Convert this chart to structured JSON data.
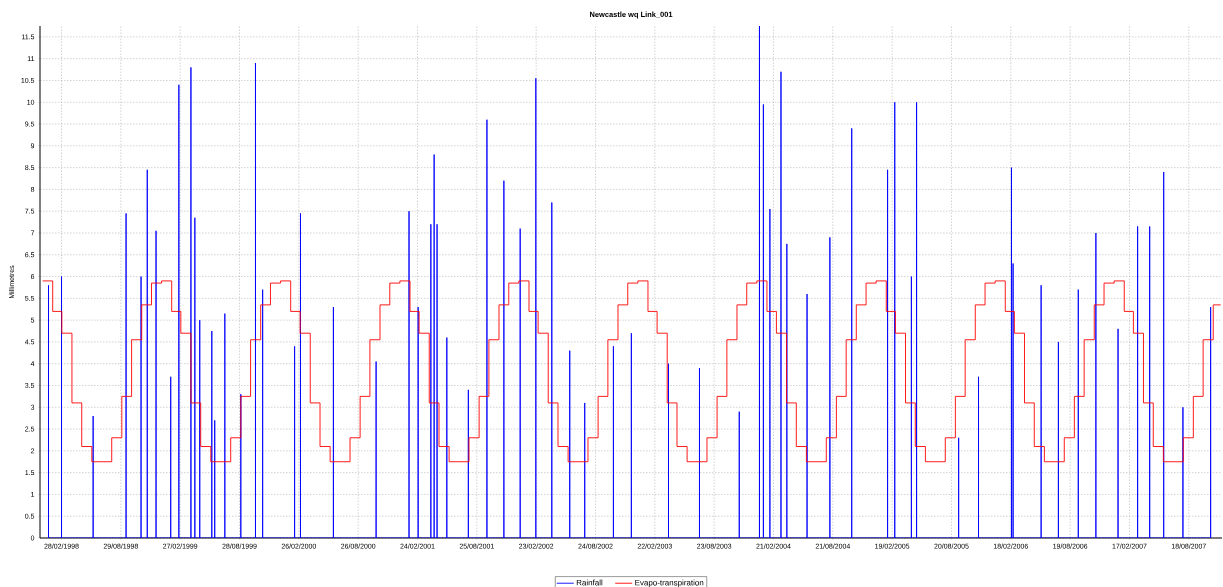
{
  "chart_data": {
    "type": "line",
    "title": "Newcastle wq Link_001",
    "ylabel": "Millimetres",
    "xlim": [
      "1997-12-24",
      "2007-11-28"
    ],
    "ylim": [
      0,
      11.75
    ],
    "xticks": [
      {
        "value": "1998-02-28",
        "label": "28/02/1998"
      },
      {
        "value": "1998-08-29",
        "label": "29/08/1998"
      },
      {
        "value": "1999-02-27",
        "label": "27/02/1999"
      },
      {
        "value": "1999-08-28",
        "label": "28/08/1999"
      },
      {
        "value": "2000-02-26",
        "label": "26/02/2000"
      },
      {
        "value": "2000-08-26",
        "label": "26/08/2000"
      },
      {
        "value": "2001-02-24",
        "label": "24/02/2001"
      },
      {
        "value": "2001-08-25",
        "label": "25/08/2001"
      },
      {
        "value": "2002-02-23",
        "label": "23/02/2002"
      },
      {
        "value": "2002-08-24",
        "label": "24/08/2002"
      },
      {
        "value": "2003-02-22",
        "label": "22/02/2003"
      },
      {
        "value": "2003-08-23",
        "label": "23/08/2003"
      },
      {
        "value": "2004-02-21",
        "label": "21/02/2004"
      },
      {
        "value": "2004-08-21",
        "label": "21/08/2004"
      },
      {
        "value": "2005-02-19",
        "label": "19/02/2005"
      },
      {
        "value": "2005-08-20",
        "label": "20/08/2005"
      },
      {
        "value": "2006-02-18",
        "label": "18/02/2006"
      },
      {
        "value": "2006-08-19",
        "label": "19/08/2006"
      },
      {
        "value": "2007-02-17",
        "label": "17/02/2007"
      },
      {
        "value": "2007-08-18",
        "label": "18/08/2007"
      }
    ],
    "yticks": [
      0,
      0.5,
      1,
      1.5,
      2,
      2.5,
      3,
      3.5,
      4,
      4.5,
      5,
      5.5,
      6,
      6.5,
      7,
      7.5,
      8,
      8.5,
      9,
      9.5,
      10,
      10.5,
      11,
      11.5
    ],
    "grid": true,
    "legend": "bottom",
    "marker": "none",
    "line_style": "solid",
    "series": [
      {
        "name": "Rainfall",
        "color": "#0000ff",
        "x": [
          "1998-01-19",
          "1998-01-19",
          "1998-01-19",
          "1998-02-28",
          "1998-02-28",
          "1998-02-28",
          "1998-06-05",
          "1998-06-05",
          "1998-06-05",
          "1998-09-14",
          "1998-09-14",
          "1998-09-14",
          "1998-10-30",
          "1998-10-30",
          "1998-10-30",
          "1998-11-18",
          "1998-11-18",
          "1998-11-18",
          "1998-12-15",
          "1998-12-15",
          "1998-12-15",
          "1999-01-29",
          "1999-01-29",
          "1999-01-29",
          "1999-02-23",
          "1999-02-23",
          "1999-02-23",
          "1999-04-01",
          "1999-04-01",
          "1999-04-01",
          "1999-04-13",
          "1999-04-13",
          "1999-04-13",
          "1999-04-28",
          "1999-04-28",
          "1999-04-28",
          "1999-06-04",
          "1999-06-04",
          "1999-06-04",
          "1999-06-13",
          "1999-06-13",
          "1999-06-13",
          "1999-07-14",
          "1999-07-14",
          "1999-07-14",
          "1999-09-01",
          "1999-09-01",
          "1999-09-01",
          "1999-10-16",
          "1999-10-16",
          "1999-10-16",
          "1999-11-07",
          "1999-11-07",
          "1999-11-07",
          "2000-02-13",
          "2000-02-13",
          "2000-02-13",
          "2000-03-02",
          "2000-03-02",
          "2000-03-02",
          "2000-06-11",
          "2000-06-11",
          "2000-06-11",
          "2000-10-20",
          "2000-10-20",
          "2000-10-20",
          "2001-01-29",
          "2001-01-29",
          "2001-01-29",
          "2001-02-26",
          "2001-02-26",
          "2001-02-26",
          "2001-04-06",
          "2001-04-06",
          "2001-04-06",
          "2001-04-16",
          "2001-04-16",
          "2001-04-16",
          "2001-04-25",
          "2001-04-25",
          "2001-04-25",
          "2001-05-25",
          "2001-05-25",
          "2001-05-25",
          "2001-07-30",
          "2001-07-30",
          "2001-07-30",
          "2001-09-25",
          "2001-09-25",
          "2001-09-25",
          "2001-11-16",
          "2001-11-16",
          "2001-11-16",
          "2002-01-05",
          "2002-01-05",
          "2002-01-05",
          "2002-02-22",
          "2002-02-22",
          "2002-02-22",
          "2002-04-12",
          "2002-04-12",
          "2002-04-12",
          "2002-06-06",
          "2002-06-06",
          "2002-06-06",
          "2002-07-22",
          "2002-07-22",
          "2002-07-22",
          "2002-10-18",
          "2002-10-18",
          "2002-10-18",
          "2002-12-12",
          "2002-12-12",
          "2002-12-12",
          "2003-04-05",
          "2003-04-05",
          "2003-04-05",
          "2003-07-09",
          "2003-07-09",
          "2003-07-09",
          "2003-11-08",
          "2003-11-08",
          "2003-11-08",
          "2004-01-09",
          "2004-01-09",
          "2004-01-09",
          "2004-01-21",
          "2004-01-21",
          "2004-01-21",
          "2004-02-10",
          "2004-02-10",
          "2004-02-10",
          "2004-03-15",
          "2004-03-15",
          "2004-03-15",
          "2004-04-02",
          "2004-04-02",
          "2004-04-02",
          "2004-06-03",
          "2004-06-03",
          "2004-06-03",
          "2004-08-12",
          "2004-08-12",
          "2004-08-12",
          "2004-10-18",
          "2004-10-18",
          "2004-10-18",
          "2005-02-05",
          "2005-02-05",
          "2005-02-05",
          "2005-02-27",
          "2005-02-27",
          "2005-02-27",
          "2005-04-19",
          "2005-04-19",
          "2005-04-19",
          "2005-05-05",
          "2005-05-05",
          "2005-05-05",
          "2005-09-11",
          "2005-09-11",
          "2005-09-11",
          "2005-11-11",
          "2005-11-11",
          "2005-11-11",
          "2006-02-20",
          "2006-02-20",
          "2006-02-20",
          "2006-02-25",
          "2006-02-25",
          "2006-02-25",
          "2006-05-22",
          "2006-05-22",
          "2006-05-22",
          "2006-07-14",
          "2006-07-14",
          "2006-07-14",
          "2006-09-13",
          "2006-09-13",
          "2006-09-13",
          "2006-11-06",
          "2006-11-06",
          "2006-11-06",
          "2007-01-13",
          "2007-01-13",
          "2007-01-13",
          "2007-03-14",
          "2007-03-14",
          "2007-03-14",
          "2007-04-20",
          "2007-04-20",
          "2007-04-20",
          "2007-06-02",
          "2007-06-02",
          "2007-06-02",
          "2007-07-31",
          "2007-07-31",
          "2007-07-31",
          "2007-10-24",
          "2007-10-24",
          "2007-10-24"
        ],
        "values": [
          0,
          5.8,
          0,
          0,
          6.0,
          0,
          0,
          2.8,
          0,
          0,
          7.45,
          0,
          0,
          6.0,
          0,
          0,
          8.45,
          0,
          0,
          7.05,
          0,
          0,
          3.7,
          0,
          0,
          10.4,
          0,
          0,
          10.8,
          0,
          0,
          7.35,
          0,
          0,
          5.0,
          0,
          0,
          4.75,
          0,
          0,
          2.7,
          0,
          0,
          5.15,
          0,
          0,
          3.3,
          0,
          0,
          10.9,
          0,
          0,
          5.7,
          0,
          0,
          4.4,
          0,
          0,
          7.45,
          0,
          0,
          5.3,
          0,
          0,
          4.05,
          0,
          0,
          7.5,
          0,
          0,
          5.3,
          0,
          0,
          7.2,
          0,
          0,
          8.8,
          0,
          0,
          7.2,
          0,
          0,
          4.6,
          0,
          0,
          3.4,
          0,
          0,
          9.6,
          0,
          0,
          8.2,
          0,
          0,
          7.1,
          0,
          0,
          10.55,
          0,
          0,
          7.7,
          0,
          0,
          4.3,
          0,
          0,
          3.1,
          0,
          0,
          4.4,
          0,
          0,
          4.7,
          0,
          0,
          4.0,
          0,
          0,
          3.9,
          0,
          0,
          2.9,
          0,
          0,
          11.75,
          0,
          0,
          9.95,
          0,
          0,
          7.55,
          0,
          0,
          10.7,
          0,
          0,
          6.75,
          0,
          0,
          5.6,
          0,
          0,
          6.9,
          0,
          0,
          9.4,
          0,
          0,
          8.45,
          0,
          0,
          10.0,
          0,
          0,
          6.0,
          0,
          0,
          10.0,
          0,
          0,
          2.3,
          0,
          0,
          3.7,
          0,
          0,
          8.5,
          0,
          0,
          6.3,
          0,
          0,
          5.8,
          0,
          0,
          4.5,
          0,
          0,
          5.7,
          0,
          0,
          7.0,
          0,
          0,
          4.8,
          0,
          0,
          7.15,
          0,
          0,
          7.15,
          0,
          0,
          8.4,
          0,
          0,
          3.0,
          0,
          0,
          5.3,
          0
        ]
      },
      {
        "name": "Evapo-transpiration",
        "color": "#ff0000",
        "type": "step",
        "x": [
          "1998-01-01",
          "1998-02-01",
          "1998-03-01",
          "1998-04-01",
          "1998-05-01",
          "1998-06-01",
          "1998-07-01",
          "1998-08-01",
          "1998-09-01",
          "1998-10-01",
          "1998-11-01",
          "1998-12-01",
          "1999-01-01",
          "1999-02-01",
          "1999-03-01",
          "1999-04-01",
          "1999-05-01",
          "1999-06-01",
          "1999-07-01",
          "1999-08-01",
          "1999-09-01",
          "1999-10-01",
          "1999-11-01",
          "1999-12-01",
          "2000-01-01",
          "2000-02-01",
          "2000-03-01",
          "2000-04-01",
          "2000-05-01",
          "2000-06-01",
          "2000-07-01",
          "2000-08-01",
          "2000-09-01",
          "2000-10-01",
          "2000-11-01",
          "2000-12-01",
          "2001-01-01",
          "2001-02-01",
          "2001-03-01",
          "2001-04-01",
          "2001-05-01",
          "2001-06-01",
          "2001-07-01",
          "2001-08-01",
          "2001-09-01",
          "2001-10-01",
          "2001-11-01",
          "2001-12-01",
          "2002-01-01",
          "2002-02-01",
          "2002-03-01",
          "2002-04-01",
          "2002-05-01",
          "2002-06-01",
          "2002-07-01",
          "2002-08-01",
          "2002-09-01",
          "2002-10-01",
          "2002-11-01",
          "2002-12-01",
          "2003-01-01",
          "2003-02-01",
          "2003-03-01",
          "2003-04-01",
          "2003-05-01",
          "2003-06-01",
          "2003-07-01",
          "2003-08-01",
          "2003-09-01",
          "2003-10-01",
          "2003-11-01",
          "2003-12-01",
          "2004-01-01",
          "2004-02-01",
          "2004-03-01",
          "2004-04-01",
          "2004-05-01",
          "2004-06-01",
          "2004-07-01",
          "2004-08-01",
          "2004-09-01",
          "2004-10-01",
          "2004-11-01",
          "2004-12-01",
          "2005-01-01",
          "2005-02-01",
          "2005-03-01",
          "2005-04-01",
          "2005-05-01",
          "2005-06-01",
          "2005-07-01",
          "2005-08-01",
          "2005-09-01",
          "2005-10-01",
          "2005-11-01",
          "2005-12-01",
          "2006-01-01",
          "2006-02-01",
          "2006-03-01",
          "2006-04-01",
          "2006-05-01",
          "2006-06-01",
          "2006-07-01",
          "2006-08-01",
          "2006-09-01",
          "2006-10-01",
          "2006-11-01",
          "2006-12-01",
          "2007-01-01",
          "2007-02-01",
          "2007-03-01",
          "2007-04-01",
          "2007-05-01",
          "2007-06-01",
          "2007-07-01",
          "2007-08-01",
          "2007-09-01",
          "2007-10-01",
          "2007-11-01",
          "2007-11-24"
        ],
        "values": [
          5.9,
          5.2,
          4.7,
          3.1,
          2.1,
          1.75,
          1.75,
          2.3,
          3.25,
          4.55,
          5.35,
          5.85,
          5.9,
          5.2,
          4.7,
          3.1,
          2.1,
          1.75,
          1.75,
          2.3,
          3.25,
          4.55,
          5.35,
          5.85,
          5.9,
          5.2,
          4.7,
          3.1,
          2.1,
          1.75,
          1.75,
          2.3,
          3.25,
          4.55,
          5.35,
          5.85,
          5.9,
          5.2,
          4.7,
          3.1,
          2.1,
          1.75,
          1.75,
          2.3,
          3.25,
          4.55,
          5.35,
          5.85,
          5.9,
          5.2,
          4.7,
          3.1,
          2.1,
          1.75,
          1.75,
          2.3,
          3.25,
          4.55,
          5.35,
          5.85,
          5.9,
          5.2,
          4.7,
          3.1,
          2.1,
          1.75,
          1.75,
          2.3,
          3.25,
          4.55,
          5.35,
          5.85,
          5.9,
          5.2,
          4.7,
          3.1,
          2.1,
          1.75,
          1.75,
          2.3,
          3.25,
          4.55,
          5.35,
          5.85,
          5.9,
          5.2,
          4.7,
          3.1,
          2.1,
          1.75,
          1.75,
          2.3,
          3.25,
          4.55,
          5.35,
          5.85,
          5.9,
          5.2,
          4.7,
          3.1,
          2.1,
          1.75,
          1.75,
          2.3,
          3.25,
          4.55,
          5.35,
          5.85,
          5.9,
          5.2,
          4.7,
          3.1,
          2.1,
          1.75,
          1.75,
          2.3,
          3.25,
          4.55,
          5.35,
          5.35
        ]
      }
    ]
  }
}
